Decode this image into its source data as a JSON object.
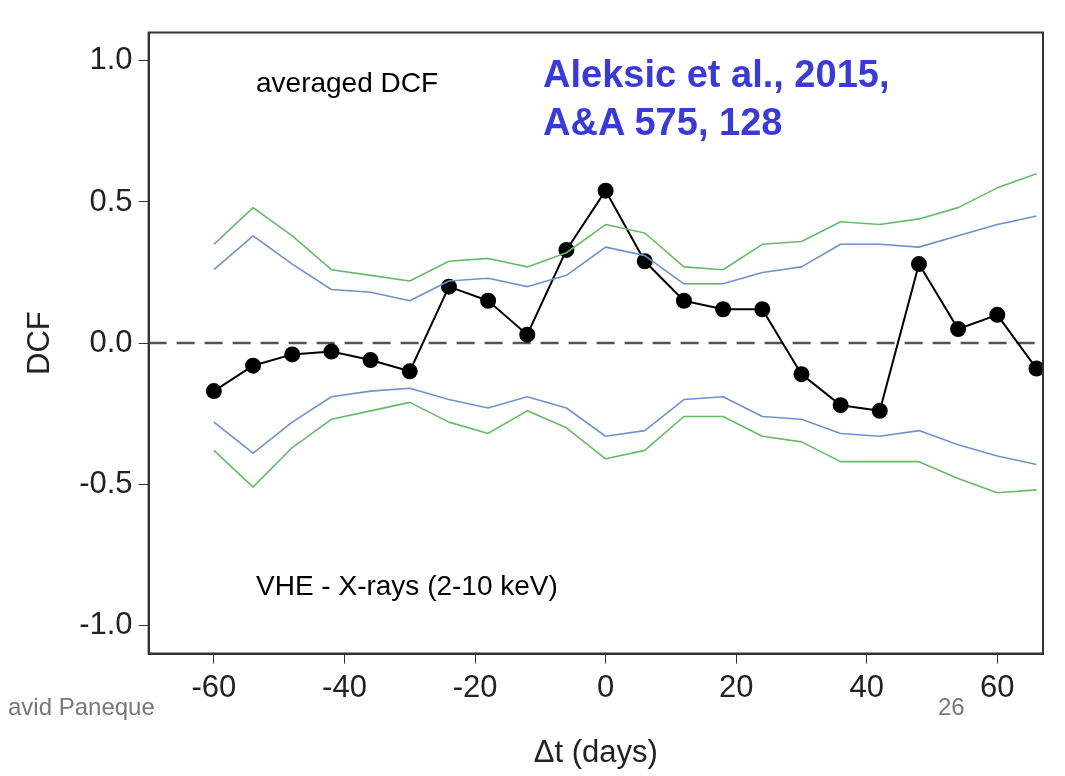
{
  "chart_data": {
    "type": "line",
    "xlabel": "Δt (days)",
    "ylabel": "DCF",
    "x": [
      -60,
      -54,
      -48,
      -42,
      -36,
      -30,
      -24,
      -18,
      -12,
      -6,
      0,
      6,
      12,
      18,
      24,
      30,
      36,
      42,
      48,
      54,
      60,
      66
    ],
    "series": [
      {
        "color": "#66bb66",
        "marker": "none",
        "values": [
          0.35,
          0.48,
          0.38,
          0.26,
          0.24,
          0.22,
          0.29,
          0.3,
          0.27,
          0.32,
          0.42,
          0.39,
          0.27,
          0.26,
          0.35,
          0.36,
          0.43,
          0.42,
          0.44,
          0.48,
          0.55,
          0.6
        ]
      },
      {
        "color": "#6f93c8",
        "marker": "none",
        "values": [
          0.26,
          0.38,
          0.28,
          0.19,
          0.18,
          0.15,
          0.22,
          0.23,
          0.2,
          0.24,
          0.34,
          0.31,
          0.21,
          0.21,
          0.25,
          0.27,
          0.35,
          0.35,
          0.34,
          0.38,
          0.42,
          0.45
        ]
      },
      {
        "color": "#6f93c8",
        "marker": "none",
        "values": [
          -0.28,
          -0.39,
          -0.28,
          -0.19,
          -0.17,
          -0.16,
          -0.2,
          -0.23,
          -0.19,
          -0.23,
          -0.33,
          -0.31,
          -0.2,
          -0.19,
          -0.26,
          -0.27,
          -0.32,
          -0.33,
          -0.31,
          -0.36,
          -0.4,
          -0.43
        ]
      },
      {
        "color": "#66bb66",
        "marker": "none",
        "values": [
          -0.38,
          -0.51,
          -0.37,
          -0.27,
          -0.24,
          -0.21,
          -0.28,
          -0.32,
          -0.24,
          -0.3,
          -0.41,
          -0.38,
          -0.26,
          -0.26,
          -0.33,
          -0.35,
          -0.42,
          -0.42,
          -0.42,
          -0.48,
          -0.53,
          -0.52
        ]
      },
      {
        "color": "#000000",
        "marker": "circle",
        "values": [
          -0.17,
          -0.08,
          -0.04,
          -0.03,
          -0.06,
          -0.1,
          0.2,
          0.15,
          0.03,
          0.33,
          0.54,
          0.29,
          0.15,
          0.12,
          0.12,
          -0.11,
          -0.22,
          -0.24,
          0.28,
          0.05,
          0.1,
          -0.09
        ]
      }
    ],
    "xlim": [
      -70,
      67
    ],
    "xticks": [
      -60,
      -40,
      -20,
      0,
      20,
      40,
      60
    ],
    "ylim": [
      -1.1,
      1.1
    ],
    "yticks": [
      {
        "value": -1,
        "label": "-1.0"
      },
      -0.5,
      {
        "value": 0,
        "label": "0.0"
      },
      0.5,
      {
        "value": 1,
        "label": "1.0"
      }
    ],
    "ref_lines": [
      {
        "axis": "y",
        "value": 0,
        "color": "#555555",
        "line_style": "dashed"
      }
    ],
    "annotations": [
      "averaged DCF",
      "Aleksic et al., 2015, A&A 575, 128",
      "VHE - X-rays (2-10 keV)",
      "avid Paneque",
      "26"
    ]
  }
}
